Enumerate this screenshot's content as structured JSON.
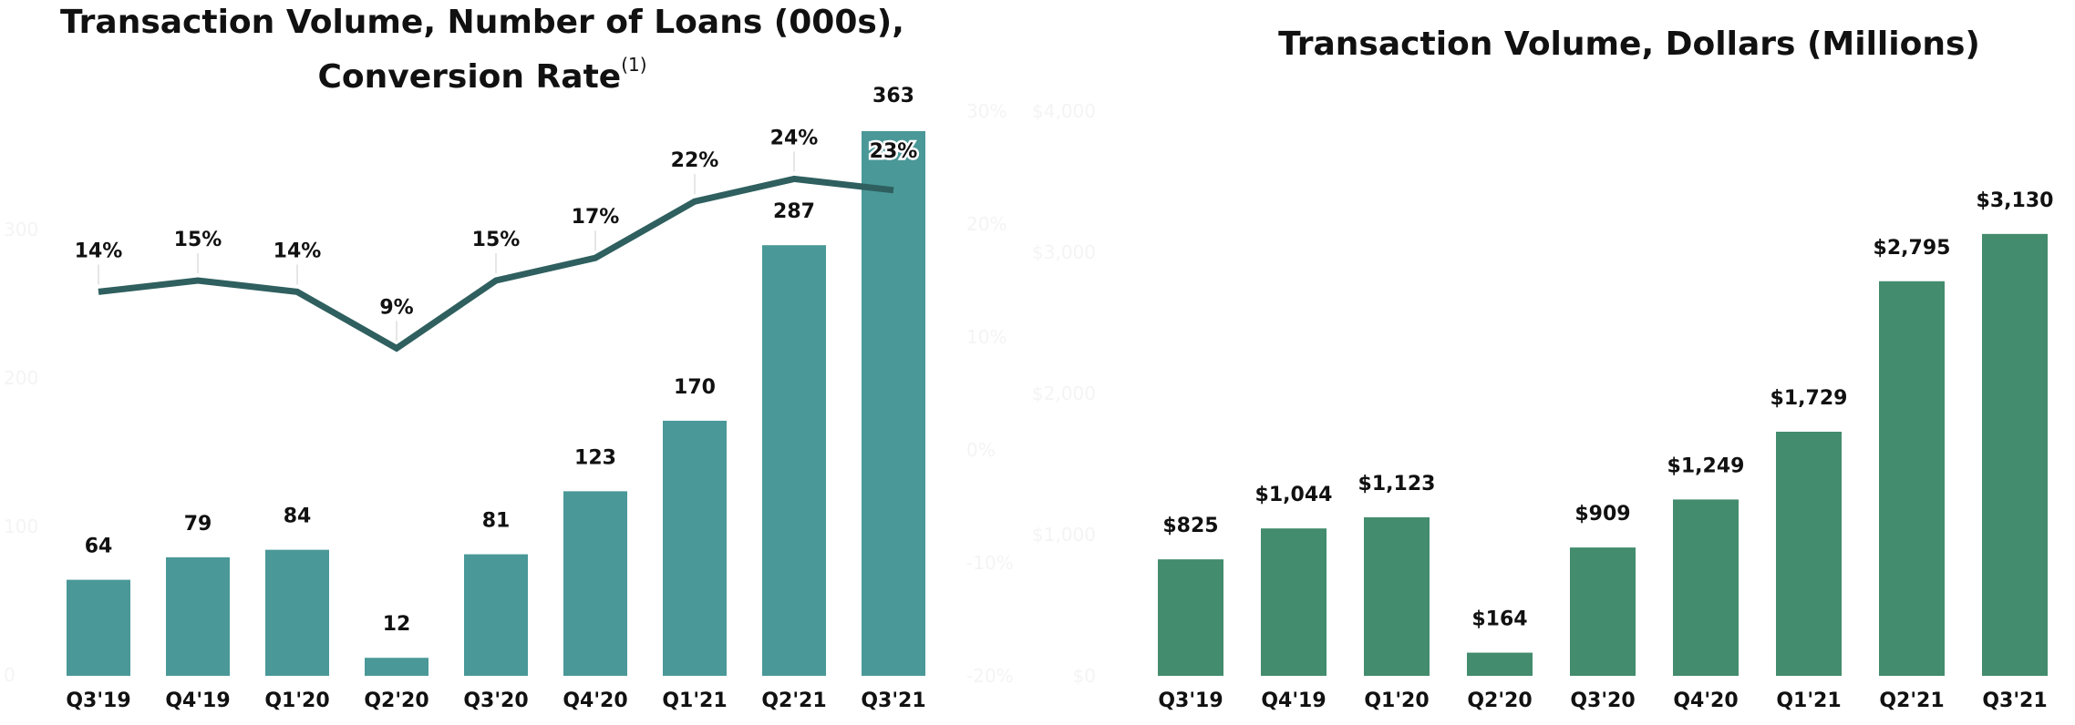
{
  "left_panel": {
    "title_line1": "Transaction Volume, Number of Loans (000s),",
    "title_line2": "Conversion Rate",
    "title_footnote": "(1)"
  },
  "right_panel": {
    "title": "Transaction Volume, Dollars (Millions)"
  },
  "chart_data": [
    {
      "type": "bar",
      "title": "Transaction Volume, Number of Loans (000s), Conversion Rate",
      "categories": [
        "Q3'19",
        "Q4'19",
        "Q1'20",
        "Q2'20",
        "Q3'20",
        "Q4'20",
        "Q1'21",
        "Q2'21",
        "Q3'21"
      ],
      "series": [
        {
          "type": "bar",
          "axis": "left",
          "values": [
            64,
            79,
            84,
            12,
            81,
            123,
            170,
            287,
            363
          ],
          "labels": [
            "64",
            "79",
            "84",
            "12",
            "81",
            "123",
            "170",
            "287",
            "363"
          ],
          "color": "#4a9898"
        },
        {
          "type": "line",
          "axis": "right",
          "values": [
            14,
            15,
            14,
            9,
            15,
            17,
            22,
            24,
            23
          ],
          "labels": [
            "14%",
            "15%",
            "14%",
            "9%",
            "15%",
            "17%",
            "22%",
            "24%",
            "23%"
          ],
          "color": "#2f5f5f"
        }
      ],
      "ylim": [
        0,
        400
      ],
      "y2lim": [
        -20,
        30
      ],
      "y2_ticks": [
        "-20%",
        "-10%",
        "0%",
        "10%",
        "20%",
        "30%"
      ],
      "y_ticks": [
        "0",
        "100",
        "200",
        "300"
      ],
      "legend": "none",
      "grid": false
    },
    {
      "type": "bar",
      "title": "Transaction Volume, Dollars (Millions)",
      "categories": [
        "Q3'19",
        "Q4'19",
        "Q1'20",
        "Q2'20",
        "Q3'20",
        "Q4'20",
        "Q1'21",
        "Q2'21",
        "Q3'21"
      ],
      "values": [
        825,
        1044,
        1123,
        164,
        909,
        1249,
        1729,
        2795,
        3130
      ],
      "labels": [
        "$825",
        "$1,044",
        "$1,123",
        "$164",
        "$909",
        "$1,249",
        "$1,729",
        "$2,795",
        "$3,130"
      ],
      "color": "#438c6d",
      "ylim": [
        0,
        4000
      ],
      "y_ticks": [
        "$0",
        "$1,000",
        "$2,000",
        "$3,000",
        "$4,000"
      ],
      "legend": "none",
      "grid": false
    }
  ]
}
